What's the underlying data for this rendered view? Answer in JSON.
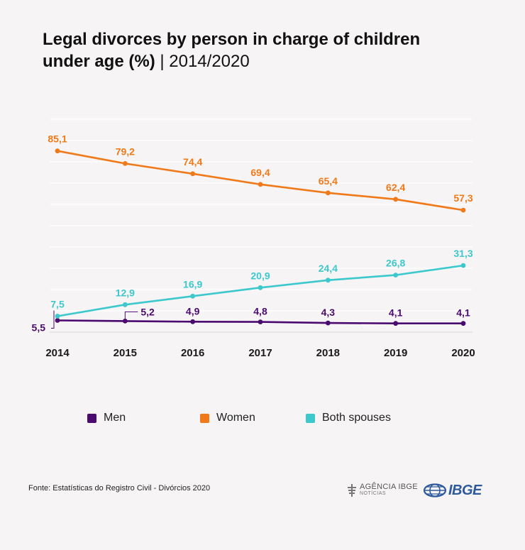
{
  "header": {
    "title_main": "Legal divorces by person in charge of children under age (%)",
    "title_separator": "|",
    "title_period": "2014/2020"
  },
  "chart_data": {
    "type": "line",
    "title": "Legal divorces by person in charge of children under age (%) | 2014/2020",
    "x": [
      "2014",
      "2015",
      "2016",
      "2017",
      "2018",
      "2019",
      "2020"
    ],
    "series": [
      {
        "name": "Men",
        "color": "#4b0a6f",
        "values": [
          5.5,
          5.2,
          4.9,
          4.8,
          4.3,
          4.1,
          4.1
        ],
        "labels": [
          "5,5",
          "5,2",
          "4,9",
          "4,8",
          "4,3",
          "4,1",
          "4,1"
        ]
      },
      {
        "name": "Women",
        "color": "#f07a19",
        "values": [
          85.1,
          79.2,
          74.4,
          69.4,
          65.4,
          62.4,
          57.3
        ],
        "labels": [
          "85,1",
          "79,2",
          "74,4",
          "69,4",
          "65,4",
          "62,4",
          "57,3"
        ]
      },
      {
        "name": "Both spouses",
        "color": "#3cc8cc",
        "values": [
          7.5,
          12.9,
          16.9,
          20.9,
          24.4,
          26.8,
          31.3
        ],
        "labels": [
          "7,5",
          "12,9",
          "16,9",
          "20,9",
          "24,4",
          "26,8",
          "31,3"
        ]
      }
    ],
    "ylim": [
      0,
      100
    ],
    "grid": true,
    "legend_position": "bottom"
  },
  "footer": {
    "source": "Fonte: Estatísticas do Registro Civil - Divórcios 2020",
    "agencia_name": "AGÊNCIA IBGE",
    "agencia_sub": "NOTÍCIAS",
    "ibge_name": "IBGE",
    "ibge_color": "#2e5a9c"
  }
}
